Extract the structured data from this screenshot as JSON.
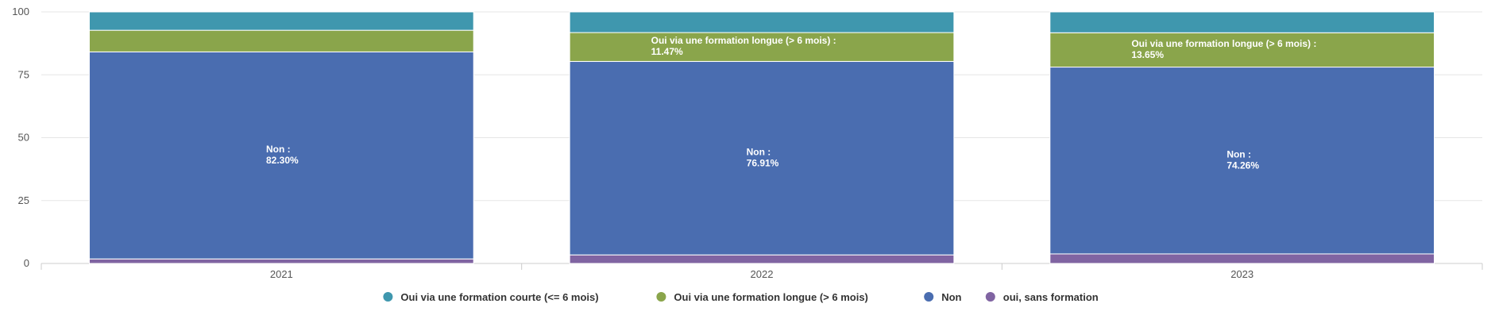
{
  "chart_data": {
    "type": "bar",
    "stacked": true,
    "categories": [
      "2021",
      "2022",
      "2023"
    ],
    "ylim": [
      0,
      100
    ],
    "yticks": [
      0,
      25,
      50,
      75,
      100
    ],
    "grid": true,
    "legend_position": "bottom-center",
    "series": [
      {
        "name": "oui, sans formation",
        "color": "#8064A2",
        "values": [
          1.8,
          3.4,
          3.8
        ],
        "labels": [
          "",
          "",
          ""
        ]
      },
      {
        "name": "Non",
        "color": "#4A6DB0",
        "values": [
          82.3,
          76.91,
          74.26
        ],
        "labels": [
          {
            "name": "Non :",
            "value": "82.30%"
          },
          {
            "name": "Non :",
            "value": "76.91%"
          },
          {
            "name": "Non :",
            "value": "74.26%"
          }
        ]
      },
      {
        "name": "Oui via une formation longue (> 6 mois)",
        "color": "#8AA54B",
        "values": [
          8.6,
          11.47,
          13.65
        ],
        "labels": [
          "",
          {
            "name": "Oui via une formation longue (> 6 mois) :",
            "value": "11.47%"
          },
          {
            "name": "Oui via une formation longue (> 6 mois) :",
            "value": "13.65%"
          }
        ]
      },
      {
        "name": "Oui via une formation courte (<= 6 mois)",
        "color": "#3F97AE",
        "values": [
          7.3,
          8.22,
          8.29
        ],
        "labels": [
          "",
          "",
          ""
        ]
      }
    ],
    "legend_order": [
      3,
      2,
      1,
      0
    ]
  }
}
